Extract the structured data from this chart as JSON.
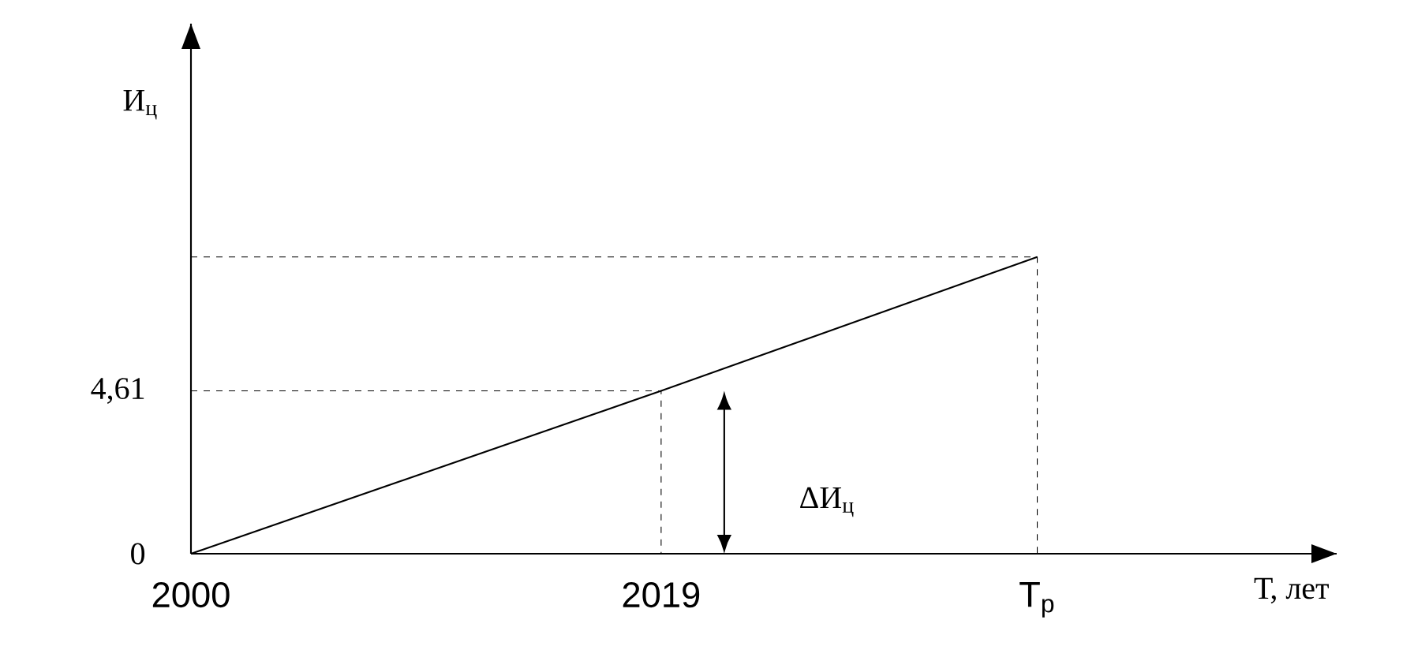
{
  "chart_data": {
    "type": "line",
    "ylabel": "И$_{ц}$",
    "xlabel": "Т, лет",
    "x": [
      2000,
      2019,
      2034.2
    ],
    "series": [
      {
        "color": "#000000",
        "values": [
          0,
          4.61,
          8.4
        ],
        "line_style": "solid"
      },
      {
        "color": "#000000",
        "x": [
          2000,
          2019,
          2019
        ],
        "values": [
          4.61,
          4.61,
          0
        ],
        "line_style": "dashed"
      },
      {
        "color": "#000000",
        "x": [
          2000,
          2034.2,
          2034.2
        ],
        "values": [
          8.4,
          8.4,
          0
        ],
        "line_style": "dashed"
      }
    ],
    "xlim": [
      2000,
      2046.3
    ],
    "ylim": [
      0,
      15
    ],
    "xticks": [
      2000,
      2019,
      {
        "value": 2034.2,
        "label": "Т$_{р}$"
      }
    ],
    "yticks": [
      0,
      {
        "value": 4.61,
        "label": "4,61"
      }
    ],
    "annotations": [
      "ΔИ$_{ц}$"
    ],
    "marker": "none"
  }
}
